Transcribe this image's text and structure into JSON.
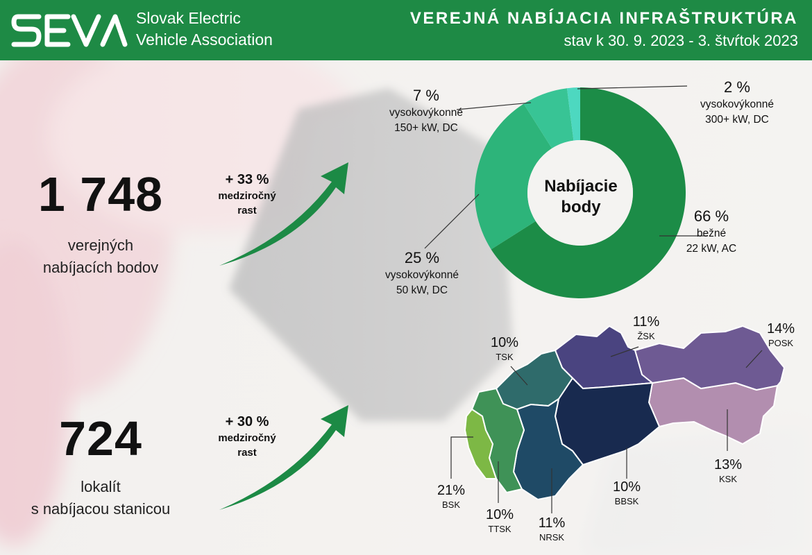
{
  "header": {
    "logo_text": "SEVA",
    "org_line1": "Slovak Electric",
    "org_line2": "Vehicle Association",
    "title": "VEREJNÁ NABÍJACIA INFRAŠTRUKTÚRA",
    "subtitle": "stav k 30. 9. 2023 - 3. štvŕtok 2023"
  },
  "stats": [
    {
      "value": "1 748",
      "caption_line1": "verejných",
      "caption_line2": "nabíjacích bodov",
      "growth": "+ 33 %",
      "growth_label_line1": "medziročný",
      "growth_label_line2": "rast"
    },
    {
      "value": "724",
      "caption_line1": "lokalít",
      "caption_line2": "s nabíjacou stanicou",
      "growth": "+ 30 %",
      "growth_label_line1": "medziročný",
      "growth_label_line2": "rast"
    }
  ],
  "colors": {
    "header_green": "#1e8a45",
    "arrow_green": "#1c8a45",
    "donut": [
      "#1c8c47",
      "#2db47a",
      "#38c495",
      "#4dd8c0"
    ],
    "regions": {
      "BSK": "#7db845",
      "TTSK": "#3f9257",
      "TSK": "#2f6b6b",
      "NRSK": "#1f4a66",
      "ZSK": "#4a4480",
      "BBSK": "#182a4f",
      "POSK": "#6e5a93",
      "KSK": "#b28eaf"
    }
  },
  "chart_data": [
    {
      "type": "pie",
      "title": "Nabíjacie body",
      "title_line1": "Nabíjacie",
      "title_line2": "body",
      "slices": [
        {
          "label_line1": "bežné",
          "label_line2": "22 kW, AC",
          "value": 66,
          "value_label": "66 %"
        },
        {
          "label_line1": "vysokovýkonné",
          "label_line2": "50 kW, DC",
          "value": 25,
          "value_label": "25 %"
        },
        {
          "label_line1": "vysokovýkonné",
          "label_line2": "150+ kW, DC",
          "value": 7,
          "value_label": "7 %"
        },
        {
          "label_line1": "vysokovýkonné",
          "label_line2": "300+ kW, DC",
          "value": 2,
          "value_label": "2 %"
        }
      ]
    },
    {
      "type": "map",
      "regions": [
        {
          "code": "BSK",
          "value": 21,
          "value_label": "21%"
        },
        {
          "code": "TTSK",
          "value": 10,
          "value_label": "10%"
        },
        {
          "code": "TSK",
          "value": 10,
          "value_label": "10%"
        },
        {
          "code": "NRSK",
          "value": 11,
          "value_label": "11%"
        },
        {
          "code": "ŽSK",
          "value": 11,
          "value_label": "11%"
        },
        {
          "code": "BBSK",
          "value": 10,
          "value_label": "10%"
        },
        {
          "code": "POSK",
          "value": 14,
          "value_label": "14%"
        },
        {
          "code": "KSK",
          "value": 13,
          "value_label": "13%"
        }
      ]
    }
  ]
}
